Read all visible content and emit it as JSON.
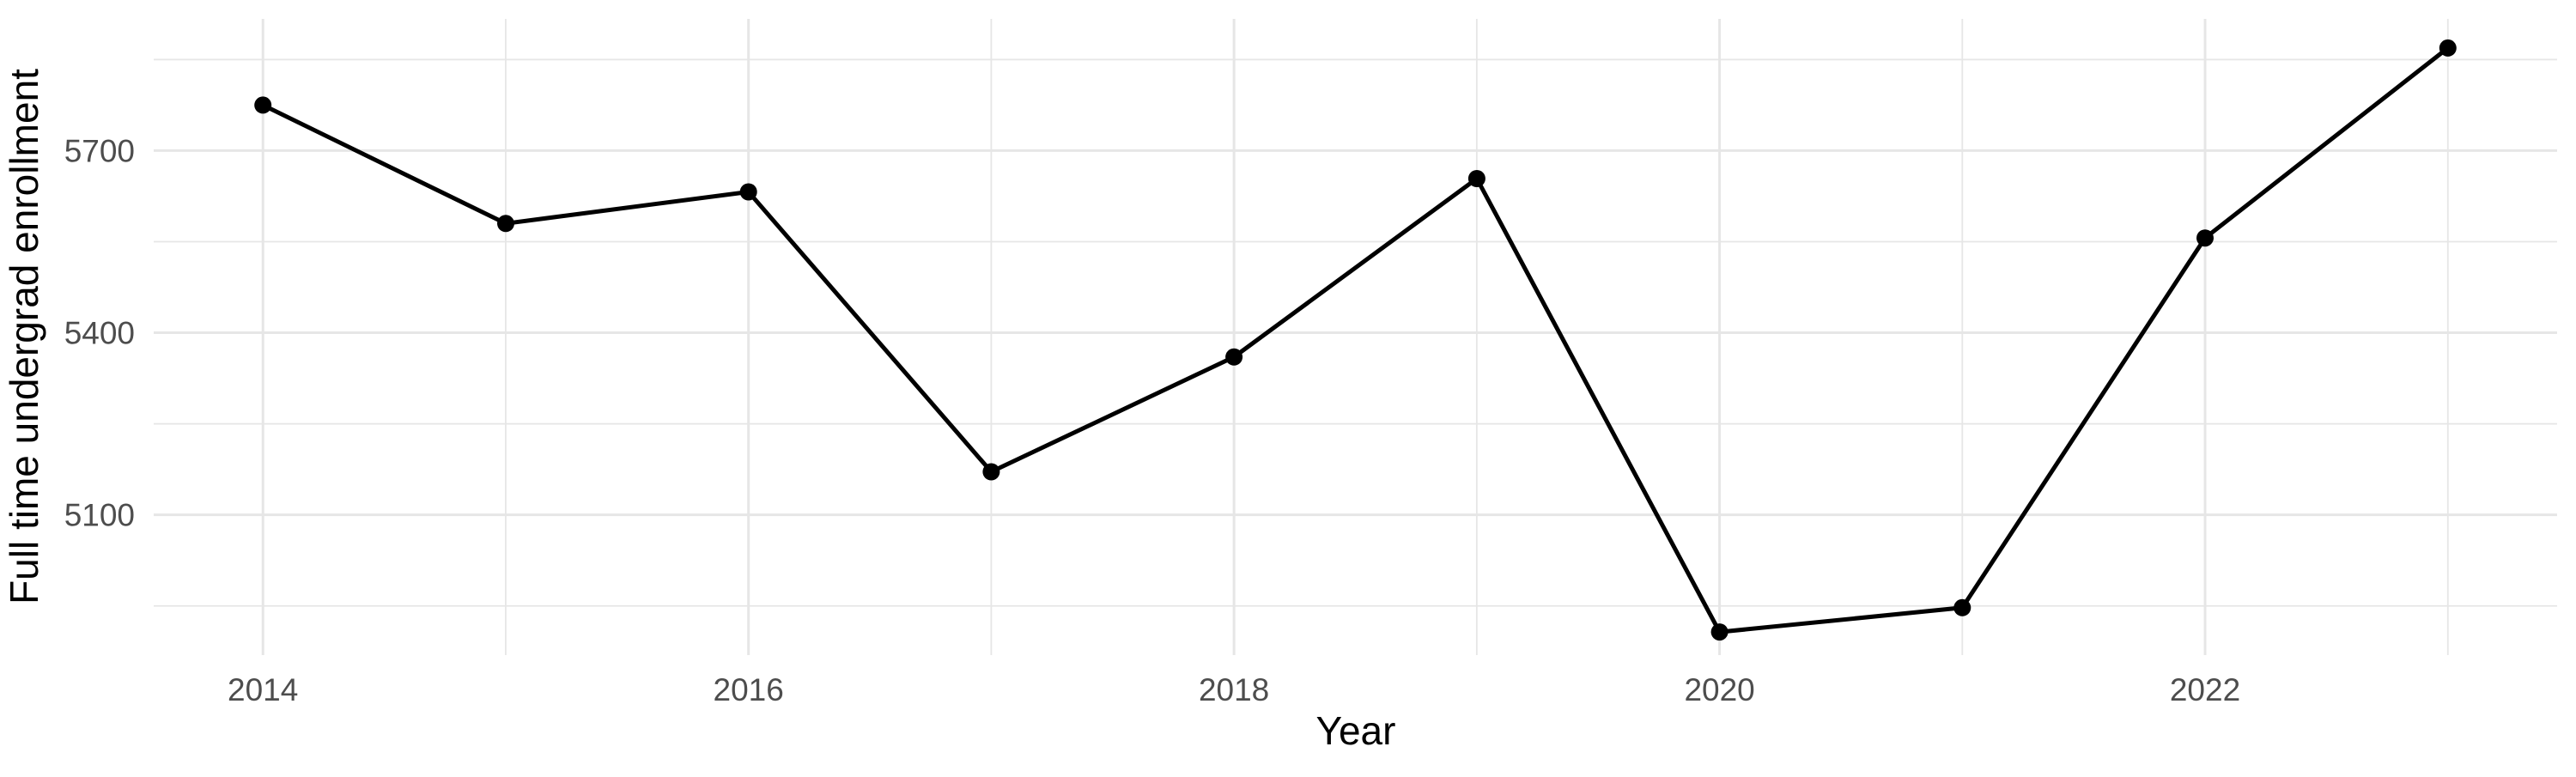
{
  "page": {
    "background": "#FFFFFF"
  },
  "chart_data": {
    "type": "line",
    "title": "",
    "xlabel": "Year",
    "ylabel": "Full time undergrad enrollment",
    "series": [
      {
        "name": "Full time undergrad enrollment",
        "x": [
          2014,
          2015,
          2016,
          2017,
          2018,
          2019,
          2020,
          2021,
          2022,
          2023
        ],
        "values": [
          5775,
          5580,
          5632,
          5171,
          5360,
          5654,
          4907,
          4947,
          5556,
          5869
        ]
      }
    ],
    "x_ticks": {
      "major": [
        2014,
        2016,
        2018,
        2020,
        2022
      ],
      "minor": [
        2015,
        2017,
        2019,
        2021,
        2023
      ],
      "labels": [
        "2014",
        "2016",
        "2018",
        "2020",
        "2022"
      ]
    },
    "y_ticks": {
      "major": [
        5100,
        5400,
        5700
      ],
      "minor": [
        4950,
        5250,
        5550,
        5850
      ],
      "labels": [
        "5100",
        "5400",
        "5700"
      ]
    },
    "xlim": [
      2013.55,
      2023.45
    ],
    "ylim": [
      4869,
      5917
    ],
    "grid": "major+minor",
    "legend": "none",
    "point_marker": "filled-circle",
    "colors": {
      "line": "#000000",
      "point": "#000000",
      "grid": "#E6E6E6",
      "tick_label": "#4D4D4D",
      "axis_title": "#000000",
      "background": "#FFFFFF"
    }
  }
}
